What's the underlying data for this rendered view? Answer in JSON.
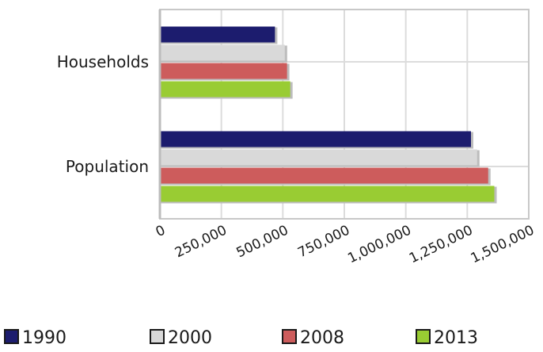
{
  "chart_data": {
    "type": "bar",
    "orientation": "horizontal",
    "categories": [
      "Households",
      "Population"
    ],
    "series": [
      {
        "name": "1990",
        "color": "#1c1c6e",
        "values": [
          468000,
          1265000
        ]
      },
      {
        "name": "2000",
        "color": "#d9d9d9",
        "values": [
          508000,
          1290000
        ]
      },
      {
        "name": "2008",
        "color": "#cd5c5c",
        "values": [
          517000,
          1335000
        ]
      },
      {
        "name": "2013",
        "color": "#99cc33",
        "values": [
          530000,
          1360000
        ]
      }
    ],
    "x_ticks": [
      0,
      250000,
      500000,
      750000,
      1000000,
      1250000,
      1500000
    ],
    "x_tick_labels": [
      "0",
      "250,000",
      "500,000",
      "750,000",
      "1,000,000",
      "1,250,000",
      "1,500,000"
    ],
    "xlim": [
      0,
      1500000
    ],
    "title": "",
    "xlabel": "",
    "ylabel": "",
    "grid": true,
    "legend_position": "bottom"
  }
}
